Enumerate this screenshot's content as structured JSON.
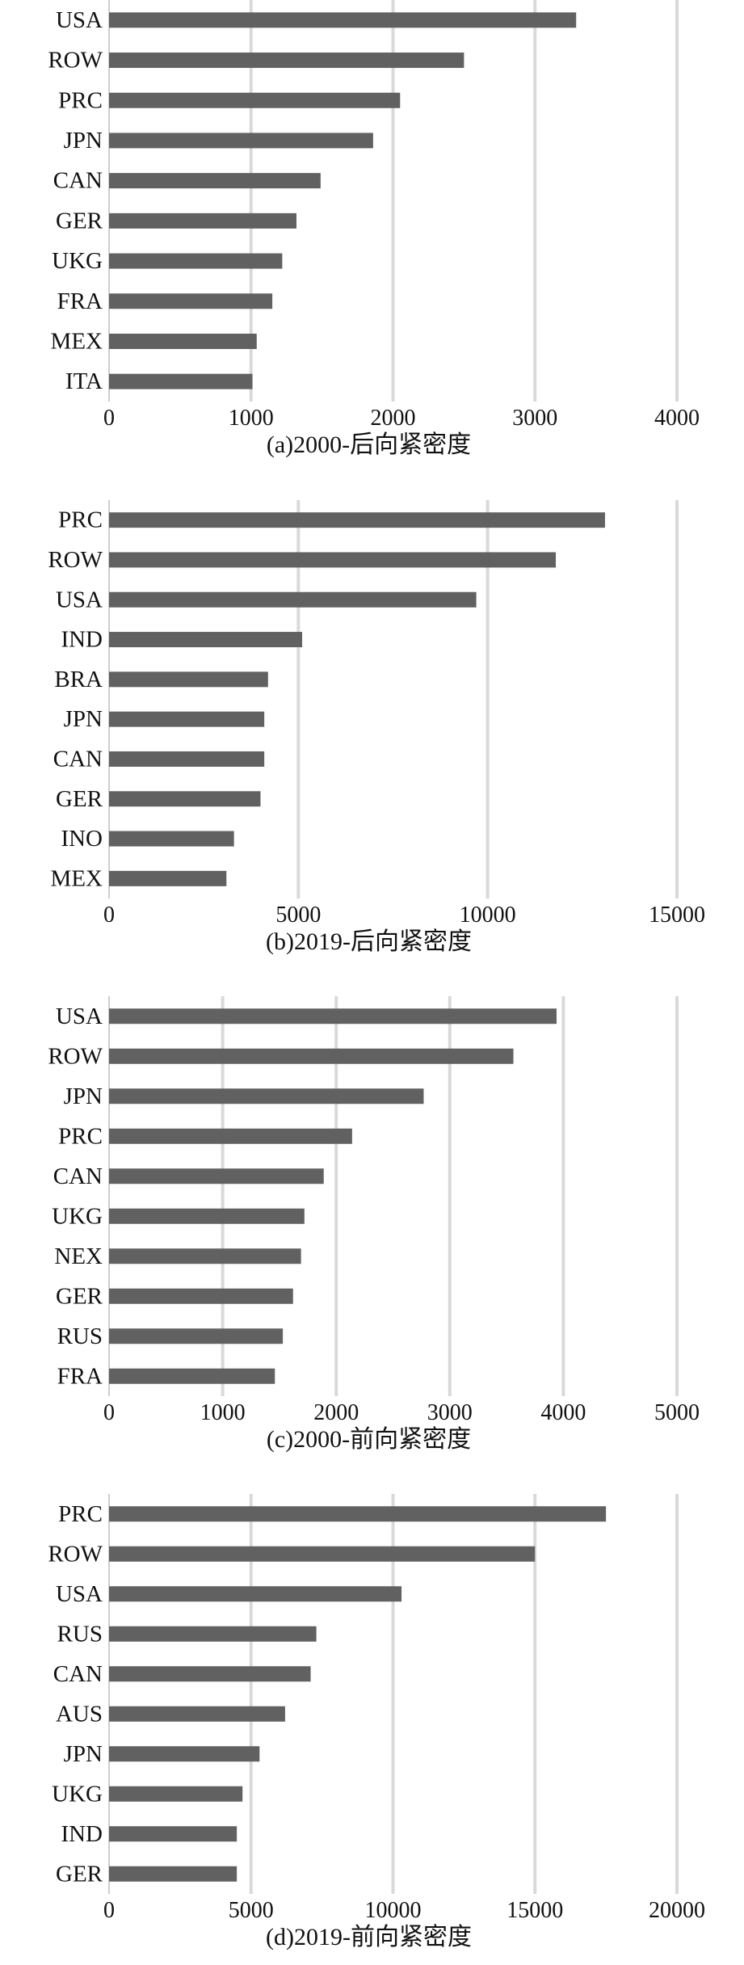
{
  "chart_data": [
    {
      "type": "bar",
      "orientation": "horizontal",
      "caption": "(a)2000-后向紧密度",
      "categories": [
        "USA",
        "ROW",
        "PRC",
        "JPN",
        "CAN",
        "GER",
        "UKG",
        "FRA",
        "MEX",
        "ITA"
      ],
      "values": [
        3290,
        2500,
        2050,
        1860,
        1490,
        1320,
        1220,
        1150,
        1040,
        1010
      ],
      "xlim": [
        0,
        4000
      ],
      "xticks": [
        0,
        1000,
        2000,
        3000,
        4000
      ],
      "xtick_labels": [
        "0",
        "1000",
        "2000",
        "3000",
        "4000"
      ],
      "grid": true
    },
    {
      "type": "bar",
      "orientation": "horizontal",
      "caption": "(b)2019-后向紧密度",
      "categories": [
        "PRC",
        "ROW",
        "USA",
        "IND",
        "BRA",
        "JPN",
        "CAN",
        "GER",
        "INO",
        "MEX"
      ],
      "values": [
        13100,
        11800,
        9700,
        5100,
        4200,
        4100,
        4100,
        4000,
        3300,
        3100
      ],
      "xlim": [
        0,
        15000
      ],
      "xticks": [
        0,
        5000,
        10000,
        15000
      ],
      "xtick_labels": [
        "0",
        "5000",
        "10000",
        "15000"
      ],
      "grid": true
    },
    {
      "type": "bar",
      "orientation": "horizontal",
      "caption": "(c)2000-前向紧密度",
      "categories": [
        "USA",
        "ROW",
        "JPN",
        "PRC",
        "CAN",
        "UKG",
        "NEX",
        "GER",
        "RUS",
        "FRA"
      ],
      "values": [
        3940,
        3560,
        2770,
        2140,
        1890,
        1720,
        1690,
        1620,
        1530,
        1460
      ],
      "xlim": [
        0,
        5000
      ],
      "xticks": [
        0,
        1000,
        2000,
        3000,
        4000,
        5000
      ],
      "xtick_labels": [
        "0",
        "1000",
        "2000",
        "3000",
        "4000",
        "5000"
      ],
      "grid": true
    },
    {
      "type": "bar",
      "orientation": "horizontal",
      "caption": "(d)2019-前向紧密度",
      "categories": [
        "PRC",
        "ROW",
        "USA",
        "RUS",
        "CAN",
        "AUS",
        "JPN",
        "UKG",
        "IND",
        "GER"
      ],
      "values": [
        17500,
        15000,
        10300,
        7300,
        7100,
        6200,
        5300,
        4700,
        4500,
        4500
      ],
      "xlim": [
        0,
        20000
      ],
      "xticks": [
        0,
        5000,
        10000,
        15000,
        20000
      ],
      "xtick_labels": [
        "0",
        "5000",
        "10000",
        "15000",
        "20000"
      ],
      "grid": true
    }
  ],
  "colors": {
    "bar": "#616161",
    "grid": "#d9d9d9",
    "text": "#111111"
  }
}
